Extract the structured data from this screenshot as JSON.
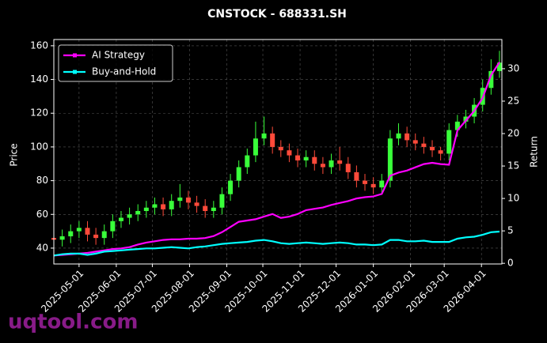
{
  "chart_data": {
    "type": "candlestick",
    "title": "CNSTOCK - 688331.SH",
    "y_label": "Price",
    "y2_label": "Return",
    "watermark": "uqtool.com",
    "legend": "upper left",
    "grid": true,
    "up_color": "#39ff3a",
    "down_color": "#ff4a3a",
    "xlim": [
      "2025-04-10",
      "2026-04-18"
    ],
    "xticks": [
      "2025-05-01",
      "2025-06-01",
      "2025-07-01",
      "2025-08-01",
      "2025-09-01",
      "2025-10-01",
      "2025-11-01",
      "2025-12-01",
      "2026-01-01",
      "2026-02-01",
      "2026-03-01",
      "2026-04-01"
    ],
    "ylim": [
      30.6,
      163.7
    ],
    "yticks": [
      40,
      60,
      80,
      100,
      120,
      140,
      160
    ],
    "y2lim": [
      -0.1,
      34.5
    ],
    "y2ticks": [
      0,
      5,
      10,
      15,
      20,
      25,
      30
    ],
    "x": [
      "2025-04-10",
      "2025-04-17",
      "2025-04-24",
      "2025-05-01",
      "2025-05-08",
      "2025-05-15",
      "2025-05-22",
      "2025-05-29",
      "2025-06-05",
      "2025-06-12",
      "2025-06-19",
      "2025-06-26",
      "2025-07-03",
      "2025-07-10",
      "2025-07-17",
      "2025-07-24",
      "2025-07-31",
      "2025-08-07",
      "2025-08-14",
      "2025-08-21",
      "2025-08-28",
      "2025-09-04",
      "2025-09-11",
      "2025-09-18",
      "2025-09-25",
      "2025-10-02",
      "2025-10-09",
      "2025-10-16",
      "2025-10-23",
      "2025-10-30",
      "2025-11-06",
      "2025-11-13",
      "2025-11-20",
      "2025-11-27",
      "2025-12-04",
      "2025-12-11",
      "2025-12-18",
      "2025-12-25",
      "2026-01-01",
      "2026-01-08",
      "2026-01-15",
      "2026-01-22",
      "2026-01-29",
      "2026-02-05",
      "2026-02-12",
      "2026-02-19",
      "2026-02-26",
      "2026-03-05",
      "2026-03-12",
      "2026-03-19",
      "2026-03-26",
      "2026-04-02",
      "2026-04-09",
      "2026-04-16"
    ],
    "open": [
      46,
      45,
      47,
      50,
      52,
      48,
      46,
      50,
      56,
      58,
      60,
      62,
      64,
      66,
      63,
      68,
      70,
      67,
      65,
      62,
      64,
      72,
      80,
      88,
      95,
      105,
      108,
      100,
      98,
      95,
      92,
      94,
      90,
      88,
      92,
      90,
      85,
      80,
      78,
      76,
      80,
      105,
      108,
      104,
      102,
      100,
      98,
      96,
      110,
      115,
      118,
      125,
      135,
      145
    ],
    "high": [
      50,
      51,
      54,
      56,
      56,
      52,
      54,
      60,
      62,
      64,
      66,
      68,
      70,
      70,
      72,
      78,
      74,
      71,
      69,
      68,
      76,
      84,
      92,
      99,
      115,
      118,
      112,
      104,
      102,
      99,
      98,
      98,
      94,
      96,
      100,
      94,
      89,
      84,
      82,
      84,
      110,
      114,
      112,
      108,
      106,
      104,
      100,
      114,
      119,
      122,
      129,
      140,
      152,
      157
    ],
    "low": [
      41,
      41,
      43,
      46,
      44,
      42,
      42,
      46,
      52,
      54,
      56,
      58,
      60,
      59,
      59,
      64,
      63,
      61,
      58,
      58,
      60,
      68,
      76,
      84,
      91,
      101,
      96,
      94,
      91,
      88,
      88,
      86,
      84,
      84,
      86,
      81,
      76,
      74,
      72,
      72,
      76,
      101,
      100,
      98,
      96,
      94,
      92,
      92,
      106,
      111,
      114,
      121,
      131,
      141
    ],
    "close": [
      45,
      47,
      50,
      52,
      48,
      46,
      50,
      56,
      58,
      60,
      62,
      64,
      66,
      63,
      68,
      70,
      67,
      65,
      62,
      64,
      72,
      80,
      88,
      95,
      105,
      108,
      100,
      98,
      95,
      92,
      94,
      90,
      88,
      92,
      90,
      85,
      80,
      78,
      76,
      80,
      105,
      108,
      104,
      102,
      100,
      98,
      96,
      110,
      115,
      118,
      125,
      135,
      145,
      150
    ],
    "series": [
      {
        "name": "AI Strategy",
        "color": "#ff00ff",
        "axis": "y2",
        "values": [
          1.2,
          1.3,
          1.4,
          1.5,
          1.6,
          1.8,
          2,
          2.2,
          2.3,
          2.5,
          2.9,
          3.2,
          3.4,
          3.6,
          3.7,
          3.7,
          3.8,
          3.8,
          3.9,
          4.2,
          4.8,
          5.6,
          6.4,
          6.6,
          6.8,
          7.2,
          7.6,
          7.0,
          7.2,
          7.6,
          8.2,
          8.4,
          8.6,
          9.0,
          9.3,
          9.6,
          10.0,
          10.2,
          10.3,
          10.7,
          13.5,
          14.0,
          14.3,
          14.8,
          15.3,
          15.5,
          15.3,
          15.2,
          20.5,
          22.0,
          23.5,
          25.5,
          29.0,
          31.0
        ]
      },
      {
        "name": "Buy-and-Hold",
        "color": "#00ffff",
        "axis": "y2",
        "values": [
          1.2,
          1.4,
          1.5,
          1.5,
          1.3,
          1.5,
          1.8,
          1.9,
          2.0,
          2.1,
          2.2,
          2.3,
          2.3,
          2.4,
          2.5,
          2.4,
          2.3,
          2.5,
          2.6,
          2.8,
          3.0,
          3.1,
          3.2,
          3.3,
          3.5,
          3.6,
          3.4,
          3.1,
          3.0,
          3.1,
          3.2,
          3.1,
          3.0,
          3.1,
          3.2,
          3.1,
          2.9,
          2.9,
          2.8,
          2.9,
          3.6,
          3.6,
          3.4,
          3.4,
          3.5,
          3.3,
          3.3,
          3.3,
          3.8,
          4.0,
          4.1,
          4.4,
          4.8,
          4.9
        ]
      }
    ]
  }
}
